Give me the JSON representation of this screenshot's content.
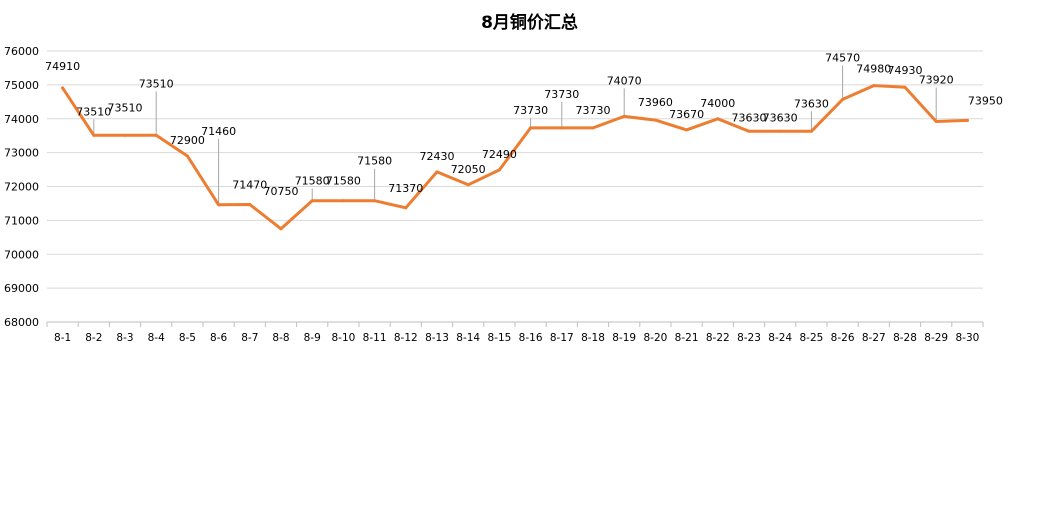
{
  "chart_data": {
    "type": "line",
    "title": "8月铜价汇总",
    "xlabel": "",
    "ylabel": "",
    "ylim": [
      68000,
      76000
    ],
    "y_ticks": [
      68000,
      69000,
      70000,
      71000,
      72000,
      73000,
      74000,
      75000,
      76000
    ],
    "grid": true,
    "legend": "none",
    "line_color": "#ED7D31",
    "grid_color": "#D9D9D9",
    "categories": [
      "8-1",
      "8-2",
      "8-3",
      "8-4",
      "8-5",
      "8-6",
      "8-7",
      "8-8",
      "8-9",
      "8-10",
      "8-11",
      "8-12",
      "8-13",
      "8-14",
      "8-15",
      "8-16",
      "8-17",
      "8-18",
      "8-19",
      "8-20",
      "8-21",
      "8-22",
      "8-23",
      "8-24",
      "8-25",
      "8-26",
      "8-27",
      "8-28",
      "8-29",
      "8-30"
    ],
    "series": [
      {
        "values": [
          74910,
          73510,
          73510,
          73510,
          72900,
          71460,
          71470,
          70750,
          71580,
          71580,
          71580,
          71370,
          72430,
          72050,
          72490,
          73730,
          73730,
          73730,
          74070,
          73960,
          73670,
          74000,
          73630,
          73630,
          73630,
          74570,
          74980,
          74930,
          73920,
          73950
        ]
      }
    ],
    "data_labels": [
      "74910",
      "73510",
      "73510",
      "73510",
      "72900",
      "71460",
      "71470",
      "70750",
      "71580",
      "71580",
      "71580",
      "71370",
      "72430",
      "72050",
      "72490",
      "73730",
      "73730",
      "73730",
      "74070",
      "73960",
      "73670",
      "74000",
      "73630",
      "73630",
      "73630",
      "74570",
      "74980",
      "74930",
      "73920",
      "73950"
    ]
  }
}
